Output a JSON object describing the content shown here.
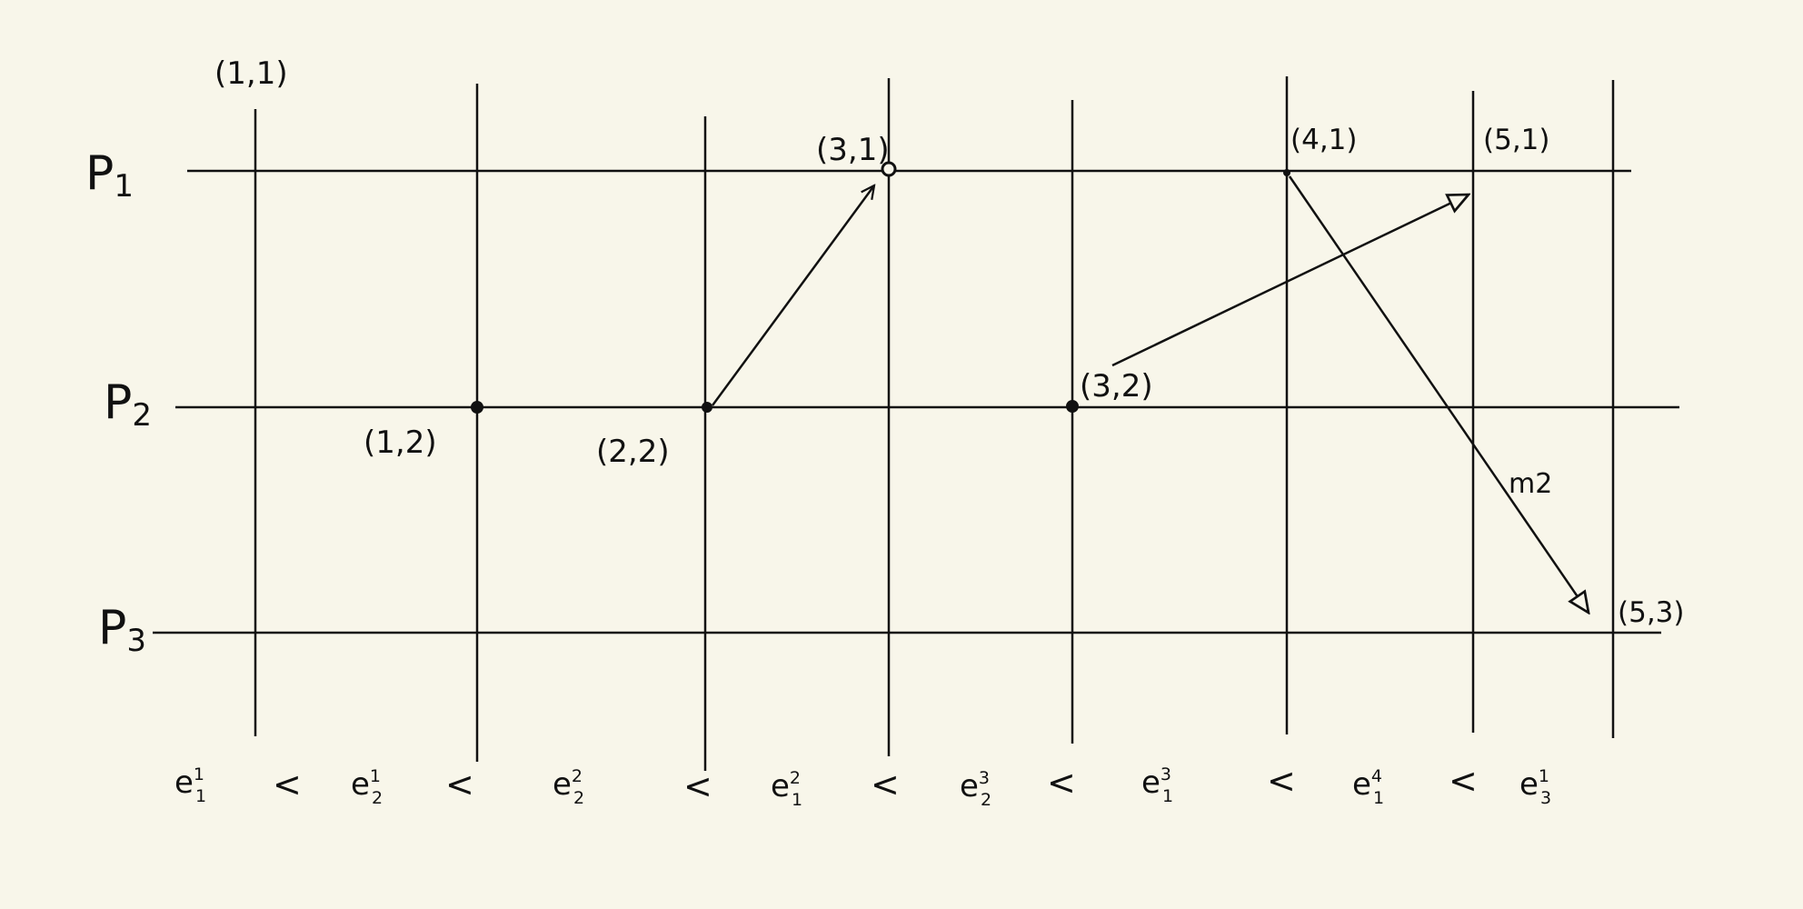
{
  "processes": [
    {
      "id": "p1",
      "letter": "P",
      "index": "1"
    },
    {
      "id": "p2",
      "letter": "P",
      "index": "2"
    },
    {
      "id": "p3",
      "letter": "P",
      "index": "3"
    }
  ],
  "event_labels": [
    {
      "id": "ev-1-1",
      "text": "(1,1)"
    },
    {
      "id": "ev-1-2",
      "text": "(1,2)"
    },
    {
      "id": "ev-2-2",
      "text": "(2,2)"
    },
    {
      "id": "ev-3-1",
      "text": "(3,1)"
    },
    {
      "id": "ev-3-2",
      "text": "(3,2)"
    },
    {
      "id": "ev-4-1",
      "text": "(4,1)"
    },
    {
      "id": "ev-5-1",
      "text": "(5,1)"
    },
    {
      "id": "ev-5-3",
      "text": "(5,3)"
    }
  ],
  "message_label": "m2",
  "ordering": {
    "events": [
      {
        "base": "e",
        "sup": "1",
        "sub": "1"
      },
      {
        "base": "e",
        "sup": "1",
        "sub": "2"
      },
      {
        "base": "e",
        "sup": "2",
        "sub": "2"
      },
      {
        "base": "e",
        "sup": "2",
        "sub": "1"
      },
      {
        "base": "e",
        "sup": "3",
        "sub": "2"
      },
      {
        "base": "e",
        "sup": "3",
        "sub": "1"
      },
      {
        "base": "e",
        "sup": "4",
        "sub": "1"
      },
      {
        "base": "e",
        "sup": "1",
        "sub": "3"
      }
    ],
    "separator": "<"
  },
  "colors": {
    "background": "#f8f6ea",
    "ink": "#111111"
  }
}
